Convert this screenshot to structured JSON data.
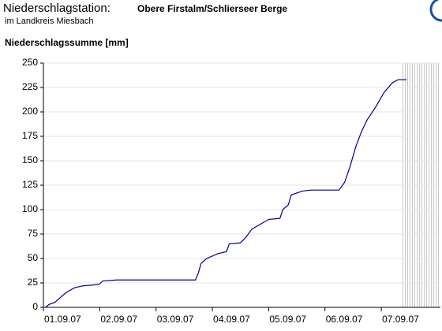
{
  "chart_data": {
    "type": "line",
    "title": "Niederschlagstation:",
    "station": "Obere Firstalm/Schlierseer Berge",
    "subtitle": "im Landkreis Miesbach",
    "y_label": "Niederschlagssumme [mm]",
    "x": [
      0.04,
      0.1,
      0.2,
      0.3,
      0.4,
      0.55,
      0.7,
      0.9,
      1.0,
      1.05,
      1.3,
      2.0,
      2.7,
      2.75,
      2.8,
      2.9,
      3.1,
      3.25,
      3.3,
      3.5,
      3.6,
      3.7,
      3.85,
      4.0,
      4.2,
      4.25,
      4.35,
      4.4,
      4.5,
      4.6,
      4.75,
      5.25,
      5.35,
      5.45,
      5.55,
      5.65,
      5.75,
      5.9,
      6.05,
      6.2,
      6.3,
      6.45
    ],
    "series": [
      {
        "name": "Niederschlagssumme",
        "color": "#00008b",
        "values": [
          0,
          3,
          5,
          10,
          15,
          20,
          22,
          23,
          24,
          27,
          28,
          28,
          28,
          35,
          45,
          50,
          55,
          57,
          65,
          66,
          72,
          80,
          85,
          90,
          91,
          100,
          105,
          115,
          117,
          119,
          120,
          120,
          128,
          145,
          165,
          180,
          192,
          205,
          220,
          230,
          233,
          233
        ]
      }
    ],
    "xlim": [
      0,
      7.05
    ],
    "xticks": [
      {
        "value": 0,
        "label": "01.09.07"
      },
      {
        "value": 1,
        "label": "02.09.07"
      },
      {
        "value": 2,
        "label": "03.09.07"
      },
      {
        "value": 3,
        "label": "04.09.07"
      },
      {
        "value": 4,
        "label": "05.09.07"
      },
      {
        "value": 5,
        "label": "06.09.07"
      },
      {
        "value": 6,
        "label": "07.09.07"
      }
    ],
    "ylim": [
      0,
      250
    ],
    "yticks": [
      0,
      25,
      50,
      75,
      100,
      125,
      150,
      175,
      200,
      225,
      250
    ],
    "grid": true
  }
}
